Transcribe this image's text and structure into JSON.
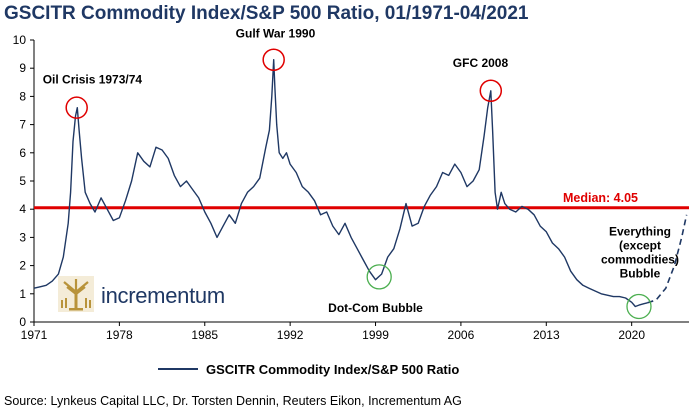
{
  "title": "GSCITR Commodity Index/S&P 500 Ratio, 01/1971-04/2021",
  "source": "Source: Lynkeus Capital LLC, Dr. Torsten Dennin, Reuters Eikon, Incrementum AG",
  "logo": {
    "text": "incrementum",
    "icon": "tree-logo-icon"
  },
  "colors": {
    "series": "#1f3864",
    "median": "#e00000",
    "peak_circle": "#e00000",
    "trough_circle": "#4caf50",
    "logo_gold": "#b8933a"
  },
  "chart_data": {
    "type": "line",
    "title": "GSCITR Commodity Index/S&P 500 Ratio, 01/1971-04/2021",
    "xlabel": "",
    "ylabel": "",
    "xlim": [
      1971,
      2024.7
    ],
    "ylim": [
      0,
      10
    ],
    "x_ticks": [
      "1971",
      "1978",
      "1985",
      "1992",
      "1999",
      "2006",
      "2013",
      "2020"
    ],
    "y_ticks": [
      "0",
      "1",
      "2",
      "3",
      "4",
      "5",
      "6",
      "7",
      "8",
      "9",
      "10"
    ],
    "grid": false,
    "legend": "bottom-center",
    "series": [
      {
        "name": "GSCITR Commodity Index/S&P 500 Ratio",
        "x": [
          1971.0,
          1971.5,
          1972.0,
          1972.5,
          1973.0,
          1973.4,
          1973.8,
          1974.0,
          1974.2,
          1974.4,
          1974.55,
          1974.7,
          1974.9,
          1975.2,
          1975.6,
          1976.0,
          1976.5,
          1977.0,
          1977.5,
          1978.0,
          1978.5,
          1979.0,
          1979.5,
          1980.0,
          1980.5,
          1981.0,
          1981.5,
          1982.0,
          1982.5,
          1983.0,
          1983.5,
          1984.0,
          1984.5,
          1985.0,
          1985.5,
          1986.0,
          1986.5,
          1987.0,
          1987.5,
          1988.0,
          1988.5,
          1989.0,
          1989.5,
          1990.0,
          1990.3,
          1990.5,
          1990.65,
          1990.75,
          1990.9,
          1991.1,
          1991.4,
          1991.7,
          1992.0,
          1992.5,
          1993.0,
          1993.5,
          1994.0,
          1994.5,
          1995.0,
          1995.5,
          1996.0,
          1996.5,
          1997.0,
          1997.5,
          1998.0,
          1998.5,
          1999.0,
          1999.5,
          2000.0,
          2000.5,
          2001.0,
          2001.5,
          2002.0,
          2002.5,
          2003.0,
          2003.5,
          2004.0,
          2004.5,
          2005.0,
          2005.5,
          2006.0,
          2006.5,
          2007.0,
          2007.5,
          2007.9,
          2008.2,
          2008.45,
          2008.6,
          2008.8,
          2009.0,
          2009.3,
          2009.6,
          2010.0,
          2010.5,
          2011.0,
          2011.5,
          2012.0,
          2012.5,
          2013.0,
          2013.5,
          2014.0,
          2014.5,
          2015.0,
          2015.5,
          2016.0,
          2016.5,
          2017.0,
          2017.5,
          2018.0,
          2018.5,
          2019.0,
          2019.5,
          2020.0,
          2020.3,
          2020.6,
          2021.0,
          2021.3
        ],
        "values": [
          1.2,
          1.25,
          1.3,
          1.45,
          1.7,
          2.3,
          3.5,
          4.6,
          6.4,
          7.3,
          7.6,
          6.8,
          5.8,
          4.6,
          4.2,
          3.9,
          4.4,
          4.0,
          3.6,
          3.7,
          4.3,
          5.0,
          6.0,
          5.7,
          5.5,
          6.2,
          6.1,
          5.8,
          5.2,
          4.8,
          5.0,
          4.7,
          4.4,
          3.9,
          3.5,
          3.0,
          3.4,
          3.8,
          3.5,
          4.2,
          4.6,
          4.8,
          5.1,
          6.2,
          6.8,
          8.0,
          9.3,
          8.3,
          7.0,
          6.0,
          5.8,
          6.0,
          5.6,
          5.3,
          4.8,
          4.6,
          4.3,
          3.8,
          3.9,
          3.4,
          3.1,
          3.5,
          3.0,
          2.6,
          2.2,
          1.8,
          1.5,
          1.7,
          2.3,
          2.6,
          3.3,
          4.2,
          3.4,
          3.5,
          4.1,
          4.5,
          4.8,
          5.3,
          5.2,
          5.6,
          5.3,
          4.8,
          5.0,
          5.4,
          6.6,
          7.6,
          8.2,
          6.8,
          4.6,
          4.0,
          4.6,
          4.2,
          4.0,
          3.9,
          4.1,
          4.0,
          3.8,
          3.4,
          3.2,
          2.8,
          2.6,
          2.3,
          1.8,
          1.5,
          1.3,
          1.2,
          1.1,
          1.0,
          0.95,
          0.9,
          0.9,
          0.85,
          0.7,
          0.55,
          0.6,
          0.65,
          0.68
        ]
      },
      {
        "name": "",
        "style": "dashed",
        "x": [
          2021.3,
          2022.0,
          2022.8,
          2023.5,
          2024.1,
          2024.5
        ],
        "values": [
          0.68,
          0.78,
          1.2,
          2.0,
          3.0,
          3.8
        ]
      }
    ],
    "reference_lines": [
      {
        "label": "Median: 4.05",
        "value": 4.05
      }
    ],
    "annotations": [
      {
        "text": "Oil Crisis 1973/74",
        "x": 1974.5,
        "y": 7.6,
        "marker": "red-circle"
      },
      {
        "text": "Gulf War 1990",
        "x": 1990.65,
        "y": 9.3,
        "marker": "red-circle"
      },
      {
        "text": "GFC 2008",
        "x": 2008.45,
        "y": 8.2,
        "marker": "red-circle"
      },
      {
        "text": "Dot-Com Bubble",
        "x": 1999.3,
        "y": 1.6,
        "marker": "green-circle"
      },
      {
        "text": "Everything (except commodities) Bubble",
        "lines": [
          "Everything",
          "(except",
          "commodities)",
          "Bubble"
        ],
        "x": 2020.6,
        "y": 0.55,
        "marker": "green-circle"
      }
    ]
  }
}
